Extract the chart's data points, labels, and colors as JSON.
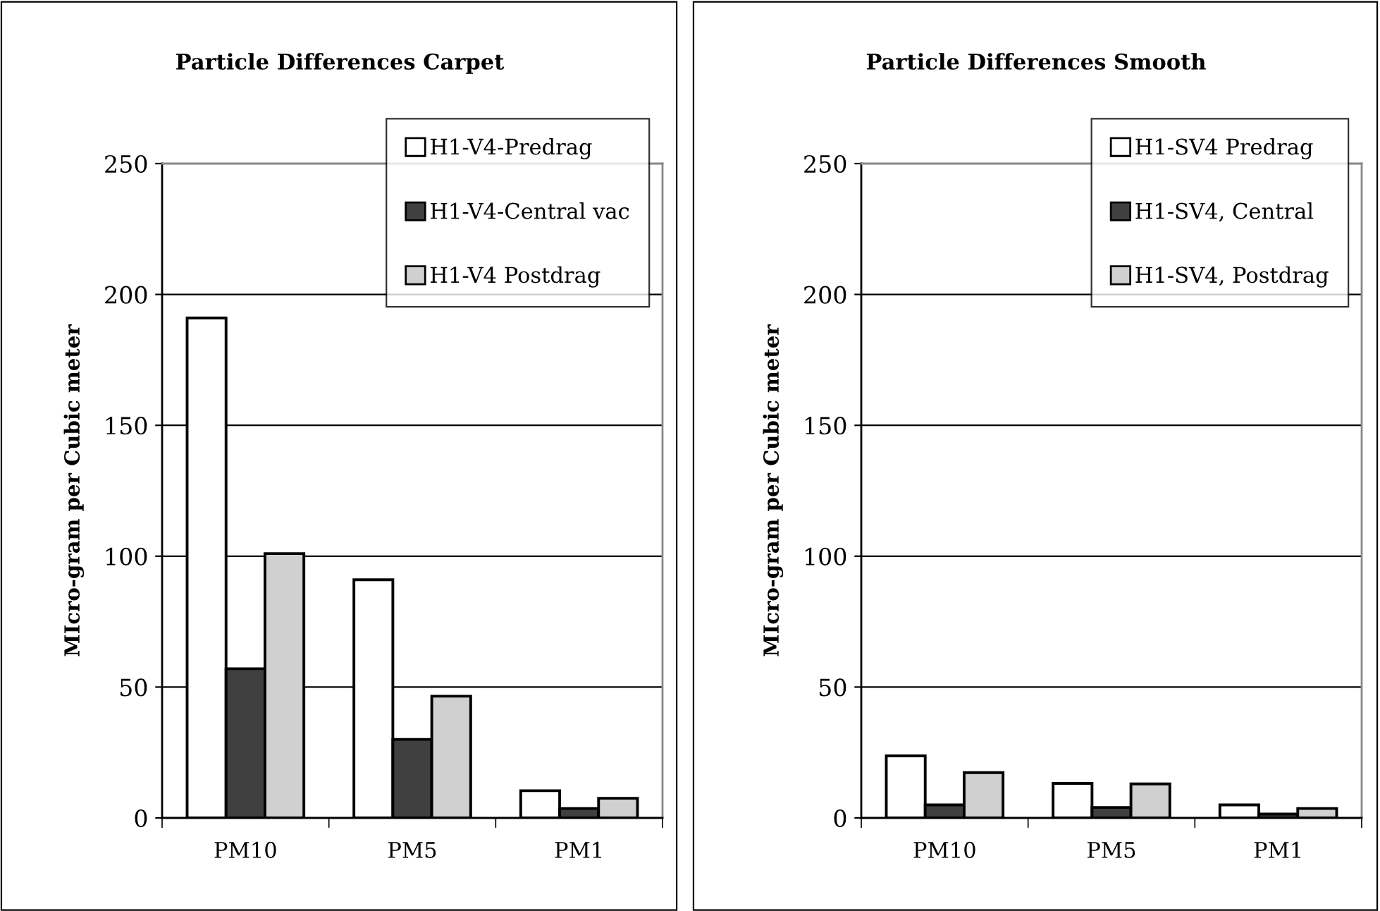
{
  "chart_data": [
    {
      "type": "bar",
      "title": "Particle Differences Carpet",
      "ylabel": "MIcro-gram per Cubic meter",
      "categories": [
        "PM10",
        "PM5",
        "PM1"
      ],
      "series": [
        {
          "name": "H1-V4-Predrag",
          "color": "#ffffff",
          "values": [
            191,
            91,
            10.4
          ]
        },
        {
          "name": "H1-V4-Central vac",
          "color": "#404040",
          "values": [
            57,
            30,
            3.6
          ]
        },
        {
          "name": "H1-V4 Postdrag",
          "color": "#d0d0d0",
          "values": [
            101,
            46.5,
            7.5
          ]
        }
      ],
      "ylim": [
        0,
        250
      ],
      "yticks": [
        0,
        50,
        100,
        150,
        200,
        250
      ],
      "grid": "y",
      "legend": "top right"
    },
    {
      "type": "bar",
      "title": "Particle Differences Smooth",
      "ylabel": "MIcro-gram per Cubic meter",
      "categories": [
        "PM10",
        "PM5",
        "PM1"
      ],
      "series": [
        {
          "name": "H1-SV4 Predrag",
          "color": "#ffffff",
          "values": [
            23.7,
            13.2,
            5
          ]
        },
        {
          "name": "H1-SV4, Central",
          "color": "#404040",
          "values": [
            5,
            4,
            1.5
          ]
        },
        {
          "name": "H1-SV4, Postdrag",
          "color": "#d0d0d0",
          "values": [
            17.3,
            13,
            3.6
          ]
        }
      ],
      "ylim": [
        0,
        250
      ],
      "yticks": [
        0,
        50,
        100,
        150,
        200,
        250
      ],
      "grid": "y",
      "legend": "top right"
    }
  ]
}
